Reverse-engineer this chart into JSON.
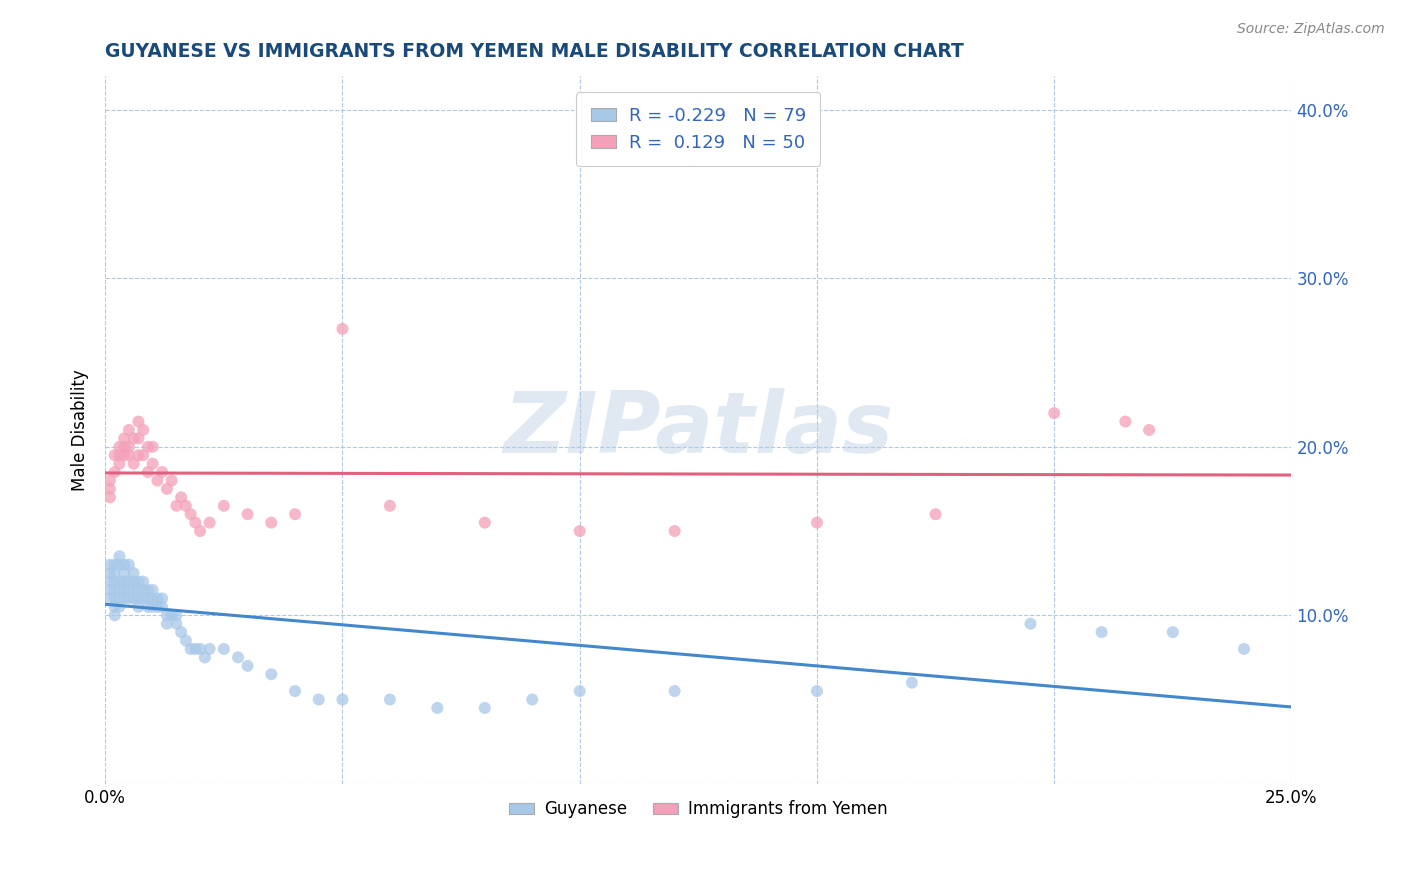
{
  "title": "GUYANESE VS IMMIGRANTS FROM YEMEN MALE DISABILITY CORRELATION CHART",
  "source": "Source: ZipAtlas.com",
  "ylabel": "Male Disability",
  "xlim": [
    0.0,
    0.25
  ],
  "ylim": [
    0.0,
    0.42
  ],
  "xticks": [
    0.0,
    0.05,
    0.1,
    0.15,
    0.2,
    0.25
  ],
  "xtick_labels": [
    "0.0%",
    "",
    "",
    "",
    "",
    "25.0%"
  ],
  "yticks": [
    0.0,
    0.1,
    0.2,
    0.3,
    0.4
  ],
  "ytick_labels_left": [
    "",
    "",
    "",
    "",
    ""
  ],
  "ytick_labels_right": [
    "",
    "10.0%",
    "20.0%",
    "30.0%",
    "40.0%"
  ],
  "legend_R1": "-0.229",
  "legend_N1": "79",
  "legend_R2": "0.129",
  "legend_N2": "50",
  "color_blue": "#a8c8e8",
  "color_pink": "#f4a0b8",
  "line_color_blue": "#4488cc",
  "line_color_pink": "#e06080",
  "title_color": "#1a4a7a",
  "label_color": "#3366bb",
  "watermark_text": "ZIPatlas",
  "guyanese_x": [
    0.001,
    0.001,
    0.001,
    0.001,
    0.001,
    0.002,
    0.002,
    0.002,
    0.002,
    0.002,
    0.002,
    0.002,
    0.003,
    0.003,
    0.003,
    0.003,
    0.003,
    0.003,
    0.004,
    0.004,
    0.004,
    0.004,
    0.004,
    0.005,
    0.005,
    0.005,
    0.005,
    0.006,
    0.006,
    0.006,
    0.006,
    0.007,
    0.007,
    0.007,
    0.007,
    0.008,
    0.008,
    0.008,
    0.009,
    0.009,
    0.009,
    0.01,
    0.01,
    0.01,
    0.011,
    0.011,
    0.012,
    0.012,
    0.013,
    0.013,
    0.014,
    0.015,
    0.015,
    0.016,
    0.017,
    0.018,
    0.019,
    0.02,
    0.021,
    0.022,
    0.025,
    0.028,
    0.03,
    0.035,
    0.04,
    0.045,
    0.05,
    0.06,
    0.07,
    0.08,
    0.09,
    0.1,
    0.12,
    0.15,
    0.17,
    0.195,
    0.21,
    0.225,
    0.24
  ],
  "guyanese_y": [
    0.13,
    0.125,
    0.12,
    0.115,
    0.11,
    0.13,
    0.125,
    0.12,
    0.115,
    0.11,
    0.105,
    0.1,
    0.135,
    0.13,
    0.12,
    0.115,
    0.11,
    0.105,
    0.13,
    0.125,
    0.12,
    0.115,
    0.11,
    0.13,
    0.12,
    0.115,
    0.11,
    0.125,
    0.12,
    0.115,
    0.11,
    0.12,
    0.115,
    0.11,
    0.105,
    0.12,
    0.115,
    0.11,
    0.115,
    0.11,
    0.105,
    0.115,
    0.11,
    0.105,
    0.11,
    0.105,
    0.11,
    0.105,
    0.1,
    0.095,
    0.1,
    0.1,
    0.095,
    0.09,
    0.085,
    0.08,
    0.08,
    0.08,
    0.075,
    0.08,
    0.08,
    0.075,
    0.07,
    0.065,
    0.055,
    0.05,
    0.05,
    0.05,
    0.045,
    0.045,
    0.05,
    0.055,
    0.055,
    0.055,
    0.06,
    0.095,
    0.09,
    0.09,
    0.08
  ],
  "yemen_x": [
    0.001,
    0.001,
    0.001,
    0.002,
    0.002,
    0.003,
    0.003,
    0.003,
    0.004,
    0.004,
    0.004,
    0.005,
    0.005,
    0.005,
    0.006,
    0.006,
    0.007,
    0.007,
    0.007,
    0.008,
    0.008,
    0.009,
    0.009,
    0.01,
    0.01,
    0.011,
    0.012,
    0.013,
    0.014,
    0.015,
    0.016,
    0.017,
    0.018,
    0.019,
    0.02,
    0.022,
    0.025,
    0.03,
    0.035,
    0.04,
    0.05,
    0.06,
    0.08,
    0.1,
    0.12,
    0.15,
    0.175,
    0.2,
    0.215,
    0.22
  ],
  "yemen_y": [
    0.18,
    0.175,
    0.17,
    0.195,
    0.185,
    0.2,
    0.195,
    0.19,
    0.205,
    0.2,
    0.195,
    0.21,
    0.2,
    0.195,
    0.205,
    0.19,
    0.215,
    0.205,
    0.195,
    0.21,
    0.195,
    0.2,
    0.185,
    0.2,
    0.19,
    0.18,
    0.185,
    0.175,
    0.18,
    0.165,
    0.17,
    0.165,
    0.16,
    0.155,
    0.15,
    0.155,
    0.165,
    0.16,
    0.155,
    0.16,
    0.27,
    0.165,
    0.155,
    0.15,
    0.15,
    0.155,
    0.16,
    0.22,
    0.215,
    0.21
  ]
}
